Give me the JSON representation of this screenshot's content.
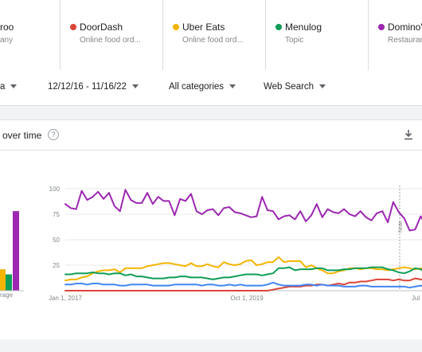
{
  "terms": [
    {
      "name": "roo",
      "sub": "any",
      "color": "#ea4335"
    },
    {
      "name": "DoorDash",
      "sub": "Online food ord...",
      "color": "#db4437"
    },
    {
      "name": "Uber Eats",
      "sub": "Online food ord...",
      "color": "#f4b400"
    },
    {
      "name": "Menulog",
      "sub": "Topic",
      "color": "#0f9d58"
    },
    {
      "name": "Domino's",
      "sub": "Restaurant",
      "color": "#9c27b0"
    }
  ],
  "filters": {
    "region": "a",
    "date_range": "12/12/16 - 11/16/22",
    "category": "All categories",
    "search_type": "Web Search"
  },
  "card": {
    "title": "over time",
    "help_icon": "question-circle-icon",
    "download_icon": "download-icon",
    "average_label": "rage"
  },
  "chart_data": [
    {
      "type": "bar",
      "title": "",
      "categories": [
        "rage"
      ],
      "series": [
        {
          "name": "Uber Eats",
          "color": "#f4b400",
          "values": [
            21
          ]
        },
        {
          "name": "Menulog",
          "color": "#0f9d58",
          "values": [
            16
          ]
        },
        {
          "name": "Domino's",
          "color": "#9c27b0",
          "values": [
            78
          ]
        }
      ],
      "ylim": [
        0,
        100
      ]
    },
    {
      "type": "line",
      "title": "",
      "xlabel": "",
      "ylabel": "",
      "x_tick_labels": [
        "Jan 1, 2017",
        "Oct 1, 2019",
        "Jul"
      ],
      "y_ticks": [
        25,
        50,
        75,
        100
      ],
      "ylim": [
        0,
        100
      ],
      "grid": true,
      "annotation": "Note",
      "series": [
        {
          "name": "Domino's",
          "color": "#9c27b0",
          "values": [
            85,
            81,
            80,
            98,
            89,
            92,
            97,
            90,
            96,
            83,
            78,
            99,
            89,
            86,
            86,
            96,
            85,
            92,
            88,
            88,
            74,
            90,
            88,
            95,
            78,
            75,
            79,
            80,
            74,
            81,
            82,
            77,
            76,
            74,
            72,
            73,
            92,
            79,
            78,
            70,
            73,
            74,
            70,
            78,
            68,
            74,
            85,
            72,
            80,
            77,
            76,
            80,
            75,
            73,
            78,
            72,
            69,
            76,
            78,
            67,
            87,
            77,
            71,
            59,
            60,
            73,
            64,
            70
          ]
        },
        {
          "name": "Uber Eats",
          "color": "#f4b400",
          "values": [
            10,
            11,
            11,
            13,
            14,
            17,
            19,
            20,
            20,
            21,
            18,
            22,
            22,
            22,
            22,
            24,
            25,
            26,
            27,
            27,
            26,
            25,
            24,
            27,
            24,
            24,
            26,
            24,
            23,
            28,
            26,
            25,
            26,
            29,
            30,
            25,
            26,
            28,
            28,
            33,
            28,
            29,
            29,
            29,
            23,
            25,
            22,
            20,
            17,
            17,
            19,
            20,
            22,
            22,
            21,
            22,
            22,
            21,
            21,
            20,
            21,
            22,
            23,
            22,
            21,
            22,
            20,
            20
          ]
        },
        {
          "name": "Menulog",
          "color": "#0f9d58",
          "values": [
            16,
            16,
            17,
            17,
            17,
            18,
            17,
            17,
            16,
            17,
            17,
            15,
            16,
            14,
            14,
            13,
            12,
            12,
            12,
            13,
            13,
            14,
            14,
            13,
            13,
            13,
            12,
            11,
            12,
            13,
            13,
            14,
            15,
            16,
            16,
            16,
            15,
            16,
            17,
            22,
            22,
            23,
            20,
            21,
            21,
            21,
            22,
            22,
            20,
            20,
            20,
            21,
            21,
            22,
            22,
            22,
            23,
            23,
            23,
            21,
            20,
            18,
            17,
            19,
            22,
            21,
            17,
            18
          ]
        },
        {
          "name": "DoorDash",
          "color": "#db4437",
          "values": [
            0,
            0,
            0,
            0,
            0,
            0,
            0,
            0,
            0,
            0,
            0,
            0,
            0,
            0,
            0,
            0,
            0,
            0,
            0,
            0,
            0,
            0,
            0,
            0,
            0,
            0,
            0,
            0,
            0,
            0,
            0,
            0,
            0,
            0,
            0,
            0,
            0,
            0,
            1,
            2,
            3,
            4,
            4,
            4,
            5,
            5,
            6,
            6,
            5,
            6,
            7,
            6,
            8,
            8,
            9,
            9,
            10,
            11,
            11,
            11,
            10,
            11,
            10,
            10,
            12,
            11,
            11,
            12
          ]
        },
        {
          "name": "roo",
          "color": "#4285f4",
          "values": [
            6,
            6,
            7,
            7,
            6,
            7,
            7,
            6,
            6,
            6,
            5,
            5,
            6,
            6,
            6,
            6,
            5,
            5,
            5,
            5,
            6,
            6,
            6,
            6,
            6,
            5,
            6,
            6,
            5,
            5,
            6,
            5,
            6,
            5,
            5,
            5,
            5,
            6,
            8,
            6,
            5,
            5,
            5,
            5,
            6,
            6,
            5,
            6,
            5,
            5,
            5,
            4,
            4,
            4,
            5,
            5,
            4,
            4,
            4,
            4,
            4,
            4,
            4,
            3,
            4,
            5,
            4,
            4
          ]
        }
      ]
    }
  ]
}
